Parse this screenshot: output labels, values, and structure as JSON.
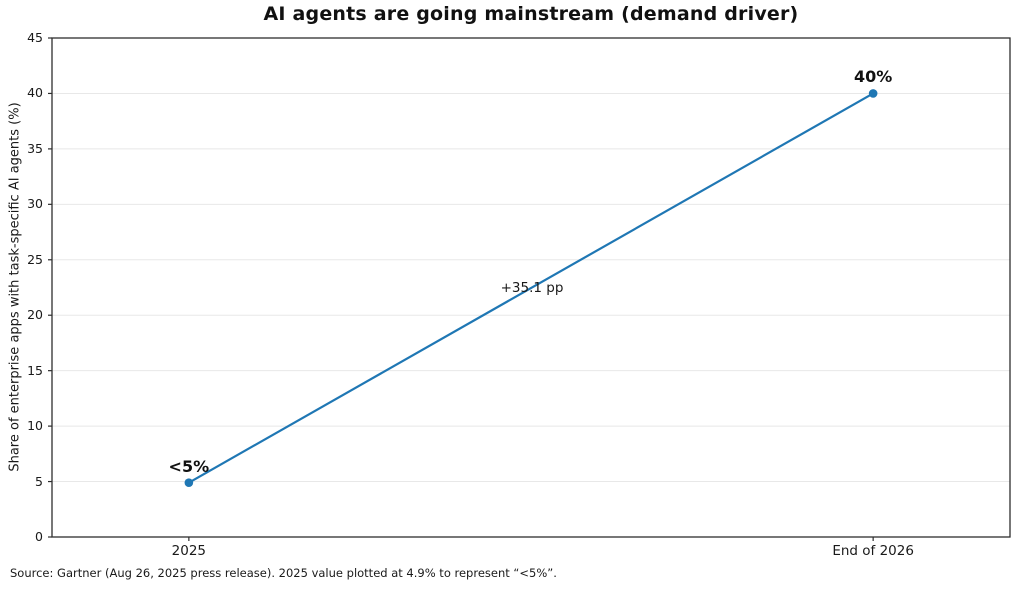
{
  "chart_data": {
    "type": "line",
    "title": "AI agents are going mainstream (demand driver)",
    "categories": [
      "2025",
      "End of 2026"
    ],
    "values": [
      4.9,
      40
    ],
    "point_labels": [
      "<5%",
      "40%"
    ],
    "annotation": "+35.1 pp",
    "xlabel": "",
    "ylabel": "Share of enterprise apps with task-specific AI agents (%)",
    "ylim": [
      0,
      45
    ],
    "yticks": [
      0,
      5,
      10,
      15,
      20,
      25,
      30,
      35,
      40,
      45
    ],
    "grid": true,
    "legend": "none",
    "line_color": "#1f77b4",
    "marker_color": "#1f77b4",
    "grid_color": "#e8e8e8",
    "frame_color": "#2e2e2e"
  },
  "footer": {
    "source_note": "Source: Gartner (Aug 26, 2025 press release). 2025 value plotted at 4.9% to represent “<5%”."
  }
}
